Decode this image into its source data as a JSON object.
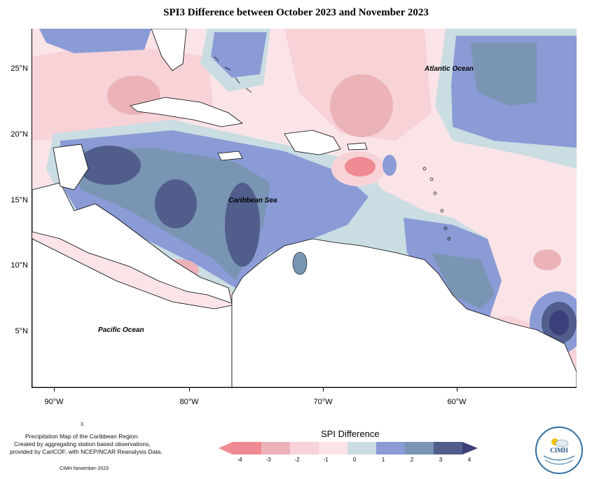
{
  "title": "SPI3 Difference between October 2023 and November 2023",
  "axes": {
    "y_labels": [
      "25°N",
      "20°N",
      "15°N",
      "10°N",
      "5°N"
    ],
    "x_labels": [
      "90°W",
      "80°W",
      "70°W",
      "60°W"
    ]
  },
  "places": {
    "atlantic": "Atlantic Ocean",
    "caribbean": "Caribbean Sea",
    "pacific": "Pacific Ocean"
  },
  "footer": {
    "superscript": "3",
    "line1": "Precipitation Map of the Caribbean Region.",
    "line2": "Created by aggregating station based observations,",
    "line3": "provided by CariCOF, with NCEP/NCAR Reanalysis Data.",
    "credit": "CIMH November-2023"
  },
  "legend": {
    "title": "SPI Difference",
    "labels": [
      "-4",
      "-3",
      "-2",
      "-1",
      "0",
      "1",
      "2",
      "3",
      "4"
    ],
    "colors": [
      "#f08a92",
      "#ebb3b8",
      "#f7d3d8",
      "#fbe4e7",
      "#c9dde3",
      "#8a9bd6",
      "#7a95b3",
      "#515e8c",
      "#3b3f7a"
    ]
  },
  "logo": {
    "text": "CIMH"
  }
}
